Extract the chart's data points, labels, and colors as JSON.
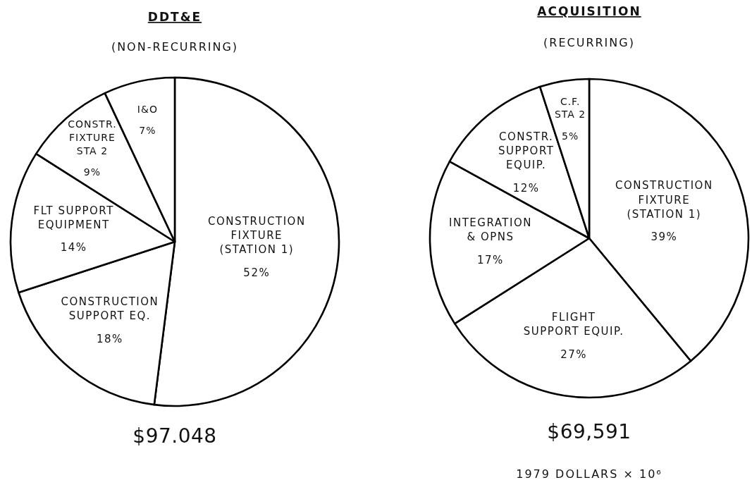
{
  "chart_data": [
    {
      "type": "pie",
      "title": "DDT&E",
      "subtitle": "(NON-RECURRING)",
      "categories": [
        "CONSTRUCTION FIXTURE (STATION 1)",
        "CONSTRUCTION SUPPORT EQ.",
        "FLT SUPPORT EQUIPMENT",
        "CONSTR. FIXTURE STA 2",
        "I&O"
      ],
      "values": [
        52,
        18,
        14,
        9,
        7
      ],
      "colors": [
        "#ffffff",
        "#ffffff",
        "#ffffff",
        "#ffffff",
        "#ffffff"
      ],
      "value_labels": [
        "52%",
        "18%",
        "14%",
        "9%",
        "7%"
      ],
      "annotations": [
        "$97.048"
      ]
    },
    {
      "type": "pie",
      "title": "ACQUISITION",
      "subtitle": "(RECURRING)",
      "categories": [
        "CONSTRUCTION FIXTURE (STATION 1)",
        "FLIGHT SUPPORT EQUIP.",
        "INTEGRATION & OPNS",
        "CONSTR. SUPPORT EQUIP.",
        "C.F. STA 2"
      ],
      "values": [
        39,
        27,
        17,
        12,
        5
      ],
      "colors": [
        "#ffffff",
        "#ffffff",
        "#ffffff",
        "#ffffff",
        "#ffffff"
      ],
      "value_labels": [
        "39%",
        "27%",
        "17%",
        "12%",
        "5%"
      ],
      "annotations": [
        "$69,591",
        "1979 DOLLARS × 10⁶"
      ]
    }
  ]
}
